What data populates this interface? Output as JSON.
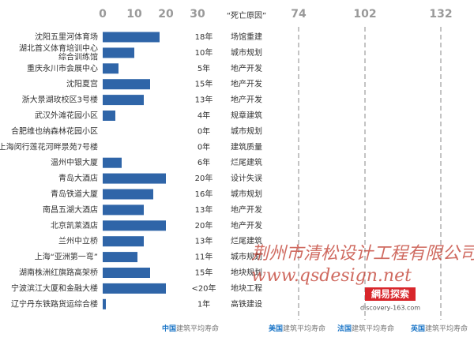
{
  "chart_data": {
    "type": "bar",
    "orientation": "horizontal",
    "categories": [
      "沈阳五里河体育场",
      "湖北首义体育培训中心\n综合训练馆",
      "重庆永川市会展中心",
      "沈阳夏宫",
      "浙大景湖玫校区3号楼",
      "武汉外滩花园小区",
      "合肥维也纳森林花园小区",
      "上海闵行莲花河畔景苑7号楼",
      "温州中银大厦",
      "青岛大酒店",
      "青岛铁道大厦",
      "南昌五湖大酒店",
      "北京凯莱酒店",
      "兰州中立桥",
      "上海“亚洲第一弯”",
      "湖南株洲红旗路高架桥",
      "宁波滨江大厦和金融大楼",
      "辽宁丹东铁路货运综合楼"
    ],
    "values": [
      18,
      10,
      5,
      15,
      13,
      4,
      0,
      0,
      6,
      20,
      16,
      13,
      20,
      13,
      11,
      15,
      20,
      1
    ],
    "value_labels": [
      "18年",
      "10年",
      "5年",
      "15年",
      "13年",
      "4年",
      "0年",
      "0年",
      "6年",
      "20年",
      "16年",
      "13年",
      "20年",
      "13年",
      "11年",
      "15年",
      "<20年",
      "1年"
    ],
    "causes_title": "“死亡原因”",
    "causes": [
      {
        "text": "场馆重建",
        "color": "#333333"
      },
      {
        "text": "城市规划",
        "color": "#2e9a3a"
      },
      {
        "text": "地产开发",
        "color": "#1f78c8"
      },
      {
        "text": "地产开发",
        "color": "#1f78c8"
      },
      {
        "text": "地产开发",
        "color": "#1f78c8"
      },
      {
        "text": "规章建筑",
        "color": "#333333"
      },
      {
        "text": "城市规划",
        "color": "#2e9a3a"
      },
      {
        "text": "建筑质量",
        "color": "#333333"
      },
      {
        "text": "烂尾建筑",
        "color": "#333333"
      },
      {
        "text": "设计失误",
        "color": "#333333"
      },
      {
        "text": "城市规划",
        "color": "#2e9a3a"
      },
      {
        "text": "地产开发",
        "color": "#1f78c8"
      },
      {
        "text": "地产开发",
        "color": "#1f78c8"
      },
      {
        "text": "烂尾建筑",
        "color": "#333333"
      },
      {
        "text": "城市规划",
        "color": "#2e9a3a"
      },
      {
        "text": "地块规划",
        "color": "#2e9a3a"
      },
      {
        "text": "地块工程",
        "color": "#2e9a3a"
      },
      {
        "text": "高铁建设",
        "color": "#333333"
      }
    ],
    "color": "#2f65a8",
    "xlim": [
      0,
      30
    ],
    "xticks": [
      0,
      10,
      20,
      30
    ],
    "reference_lines": [
      74,
      102,
      132
    ],
    "footer": [
      {
        "country": "中国",
        "text": "建筑平均寿命"
      },
      {
        "country": "美国",
        "text": "建筑平均寿命"
      },
      {
        "country": "法国",
        "text": "建筑平均寿命"
      },
      {
        "country": "英国",
        "text": "建筑平均寿命"
      }
    ]
  },
  "watermark": {
    "company": "荆州市清松设计工程有限公司",
    "url": "www.qsdesign.net",
    "logo": "網易探索",
    "logo_url": "discovery-163.com"
  }
}
